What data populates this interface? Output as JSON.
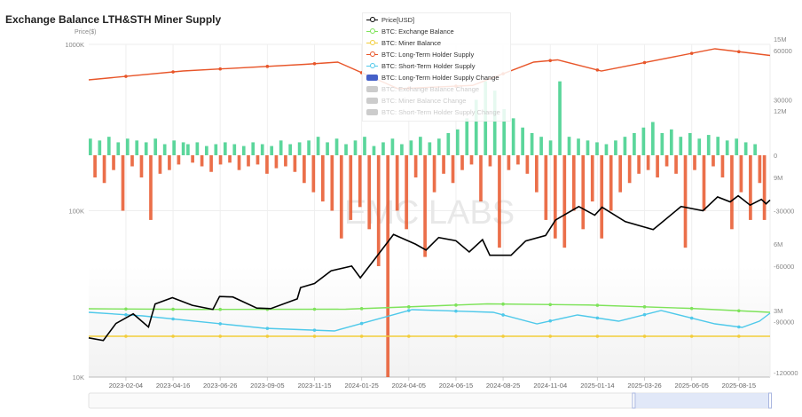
{
  "title": "Exchange Balance LTH&STH Miner Supply",
  "watermark": "EMC LABS",
  "legend": [
    {
      "label": "Price[USD]",
      "color": "#000000",
      "kind": "line",
      "active": true
    },
    {
      "label": "BTC: Exchange Balance",
      "color": "#7ee35a",
      "kind": "line",
      "active": true
    },
    {
      "label": "BTC: Miner Balance",
      "color": "#f2cd3a",
      "kind": "line",
      "active": true
    },
    {
      "label": "BTC: Long-Term Holder Supply",
      "color": "#e8562a",
      "kind": "line",
      "active": true
    },
    {
      "label": "BTC: Short-Term Holder Supply",
      "color": "#4fc9ea",
      "kind": "line",
      "active": true
    },
    {
      "label": "BTC: Long-Term Holder Supply Change",
      "color": "#4560c8",
      "kind": "box",
      "active": true
    },
    {
      "label": "BTC: Exchange Balance Change",
      "color": "#cccccc",
      "kind": "box",
      "active": false
    },
    {
      "label": "BTC: Miner Balance Change",
      "color": "#cccccc",
      "kind": "box",
      "active": false
    },
    {
      "label": "BTC: Short-Term Holder Supply Change",
      "color": "#cccccc",
      "kind": "box",
      "active": false
    }
  ],
  "chart_data": {
    "type": "line",
    "x_range": [
      "2022-12-10",
      "2025-10-01"
    ],
    "x_ticks": [
      "2023-02-04",
      "2023-04-16",
      "2023-06-26",
      "2023-09-05",
      "2023-11-15",
      "2024-01-25",
      "2024-04-05",
      "2024-06-15",
      "2024-08-25",
      "2024-11-04",
      "2025-01-14",
      "2025-03-26",
      "2025-06-05",
      "2025-08-15"
    ],
    "left_axis": {
      "label": "Price($)",
      "scale": "log",
      "range": [
        10000,
        1000000
      ],
      "ticks": [
        "10K",
        "100K",
        "1000K"
      ]
    },
    "right_axis_supply": {
      "range": [
        0,
        15000000
      ],
      "ticks": [
        "3M",
        "6M",
        "9M",
        "12M",
        "15M"
      ]
    },
    "right_axis_change": {
      "range": [
        -120000,
        60000
      ],
      "ticks": [
        "-120000",
        "-90000",
        "-60000",
        "-30000",
        "0",
        "30000",
        "60000"
      ]
    },
    "series": [
      {
        "name": "Price[USD]",
        "axis": "left",
        "color": "#000000",
        "points": [
          [
            "2022-12-10",
            17200
          ],
          [
            "2023-01-01",
            16600
          ],
          [
            "2023-01-20",
            21000
          ],
          [
            "2023-02-15",
            24000
          ],
          [
            "2023-03-10",
            20000
          ],
          [
            "2023-03-20",
            27500
          ],
          [
            "2023-04-15",
            30000
          ],
          [
            "2023-05-15",
            27000
          ],
          [
            "2023-06-15",
            25500
          ],
          [
            "2023-06-25",
            30500
          ],
          [
            "2023-07-15",
            30300
          ],
          [
            "2023-08-20",
            26000
          ],
          [
            "2023-09-10",
            25800
          ],
          [
            "2023-10-20",
            29500
          ],
          [
            "2023-10-25",
            34500
          ],
          [
            "2023-11-15",
            36500
          ],
          [
            "2023-12-10",
            43500
          ],
          [
            "2024-01-10",
            46500
          ],
          [
            "2024-01-23",
            39500
          ],
          [
            "2024-02-15",
            52000
          ],
          [
            "2024-03-13",
            72000
          ],
          [
            "2024-04-15",
            63000
          ],
          [
            "2024-05-01",
            58000
          ],
          [
            "2024-05-20",
            69000
          ],
          [
            "2024-06-15",
            66000
          ],
          [
            "2024-07-05",
            56500
          ],
          [
            "2024-07-25",
            67000
          ],
          [
            "2024-08-05",
            54000
          ],
          [
            "2024-09-06",
            54000
          ],
          [
            "2024-09-28",
            65800
          ],
          [
            "2024-10-28",
            71000
          ],
          [
            "2024-11-12",
            88000
          ],
          [
            "2024-12-17",
            106000
          ],
          [
            "2025-01-10",
            94000
          ],
          [
            "2025-01-21",
            105000
          ],
          [
            "2025-02-25",
            86000
          ],
          [
            "2025-04-08",
            77000
          ],
          [
            "2025-05-20",
            106000
          ],
          [
            "2025-06-22",
            100000
          ],
          [
            "2025-07-14",
            121000
          ],
          [
            "2025-08-02",
            113000
          ],
          [
            "2025-08-14",
            123000
          ],
          [
            "2025-09-01",
            108000
          ],
          [
            "2025-09-18",
            117000
          ],
          [
            "2025-09-25",
            110000
          ],
          [
            "2025-10-01",
            116000
          ]
        ]
      },
      {
        "name": "BTC: Long-Term Holder Supply",
        "axis": "supply",
        "color": "#e8562a",
        "points": [
          [
            "2022-12-10",
            13400000
          ],
          [
            "2023-05-01",
            13800000
          ],
          [
            "2023-11-01",
            14100000
          ],
          [
            "2023-12-20",
            14200000
          ],
          [
            "2024-03-20",
            13000000
          ],
          [
            "2024-07-10",
            13150000
          ],
          [
            "2024-10-10",
            14200000
          ],
          [
            "2024-11-15",
            14300000
          ],
          [
            "2025-01-20",
            13800000
          ],
          [
            "2025-07-10",
            14800000
          ],
          [
            "2025-10-01",
            14500000
          ]
        ]
      },
      {
        "name": "BTC: Exchange Balance",
        "axis": "supply",
        "color": "#7ee35a",
        "points": [
          [
            "2022-12-10",
            3080000
          ],
          [
            "2023-06-01",
            3050000
          ],
          [
            "2024-01-01",
            3060000
          ],
          [
            "2024-08-01",
            3300000
          ],
          [
            "2025-01-01",
            3250000
          ],
          [
            "2025-06-01",
            3100000
          ],
          [
            "2025-10-01",
            2920000
          ]
        ]
      },
      {
        "name": "BTC: Short-Term Holder Supply",
        "axis": "supply",
        "color": "#4fc9ea",
        "points": [
          [
            "2022-12-10",
            2920000
          ],
          [
            "2023-03-01",
            2760000
          ],
          [
            "2023-09-01",
            2200000
          ],
          [
            "2023-12-15",
            2080000
          ],
          [
            "2024-04-10",
            3040000
          ],
          [
            "2024-08-10",
            2920000
          ],
          [
            "2024-10-15",
            2400000
          ],
          [
            "2024-12-15",
            2800000
          ],
          [
            "2025-02-15",
            2520000
          ],
          [
            "2025-04-20",
            3000000
          ],
          [
            "2025-07-10",
            2400000
          ],
          [
            "2025-08-20",
            2240000
          ],
          [
            "2025-09-15",
            2520000
          ],
          [
            "2025-10-01",
            2880000
          ]
        ]
      },
      {
        "name": "BTC: Miner Balance",
        "axis": "supply",
        "color": "#f2cd3a",
        "points": [
          [
            "2022-12-10",
            1840000
          ],
          [
            "2025-10-01",
            1840000
          ]
        ]
      }
    ],
    "bars": {
      "name": "BTC: Long-Term Holder Supply Change",
      "axis": "change",
      "start": "2022-12-10",
      "interval_days": 7,
      "positive_color": "#3ecf8a",
      "negative_color": "#e8562a",
      "values": [
        9000,
        -12000,
        8000,
        -15000,
        10000,
        -8000,
        7000,
        -30000,
        9000,
        -6000,
        8000,
        -12000,
        7000,
        -35000,
        9000,
        -10000,
        6000,
        -8000,
        8000,
        -5000,
        7000,
        6000,
        -4000,
        7000,
        -6000,
        5000,
        -9000,
        6000,
        -5000,
        7000,
        -4000,
        6000,
        -8000,
        5000,
        -6000,
        7000,
        -5000,
        6000,
        -10000,
        5000,
        -7000,
        8000,
        -6000,
        6000,
        -9000,
        7000,
        -15000,
        8000,
        -20000,
        10000,
        -25000,
        7000,
        -30000,
        9000,
        -45000,
        6000,
        -35000,
        8000,
        -28000,
        10000,
        -40000,
        5000,
        -60000,
        7000,
        -120000,
        9000,
        -30000,
        6000,
        -40000,
        8000,
        -12000,
        10000,
        -55000,
        7000,
        -20000,
        9000,
        -10000,
        12000,
        -15000,
        14000,
        -8000,
        20000,
        -5000,
        30000,
        -25000,
        40000,
        -6000,
        35000,
        -50000,
        25000,
        -8000,
        20000,
        -5000,
        15000,
        -10000,
        12000,
        -20000,
        10000,
        -35000,
        8000,
        -45000,
        40000,
        -50000,
        10000,
        -30000,
        9000,
        -40000,
        8000,
        -25000,
        7000,
        -45000,
        6000,
        -30000,
        8000,
        -20000,
        10000,
        -15000,
        12000,
        -10000,
        15000,
        -8000,
        18000,
        -12000,
        12000,
        -6000,
        14000,
        -10000,
        10000,
        -50000,
        12000,
        -8000,
        9000,
        -30000,
        11000,
        -6000,
        10000,
        -12000,
        8000,
        -40000,
        9000,
        -20000,
        7000,
        -35000,
        6000,
        -15000,
        -35000
      ]
    }
  },
  "data_zoom": {
    "start_fraction": 0.8,
    "end_fraction": 1.0
  }
}
